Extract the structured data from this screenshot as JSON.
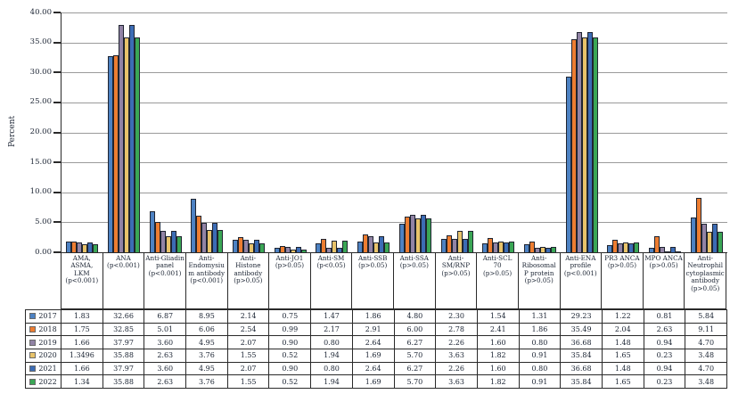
{
  "chart_data": {
    "type": "bar",
    "title": "",
    "xlabel": "",
    "ylabel": "Percent",
    "ylim": [
      0,
      40
    ],
    "ytick_step": 5,
    "grid": true,
    "legend_position": "table-below-chart",
    "categories": [
      "AMA, ASMA, LKM (p<0.001)",
      "ANA (p<0.001)",
      "Anti-Gliadin panel (p<0.001)",
      "Anti-Endomysium antibody (p<0.001)",
      "Anti-Histone antibody (p>0.05)",
      "Anti-JO1 (p>0.05)",
      "Anti-SM (p<0.05)",
      "Anti-SSB (p>0.05)",
      "Anti-SSA (p>0.05)",
      "Anti-SM/RNP (p>0.05)",
      "Anti-SCL 70 (p>0.05)",
      "Anti-Ribosomal P protein (p>0.05)",
      "Anti-ENA profile (p<0.001)",
      "PR3 ANCA (p>0.05)",
      "MPO ANCA (p>0.05)",
      "Anti-Neutrophil cytoplasmic antibody (p>0.05)"
    ],
    "series": [
      {
        "name": "2017",
        "color": "#4d82c3",
        "values": [
          "1.83",
          "32.66",
          "6.87",
          "8.95",
          "2.14",
          "0.75",
          "1.47",
          "1.86",
          "4.80",
          "2.30",
          "1.54",
          "1.31",
          "29.23",
          "1.22",
          "0.81",
          "5.84"
        ]
      },
      {
        "name": "2018",
        "color": "#ed7d31",
        "values": [
          "1.75",
          "32.85",
          "5.01",
          "6.06",
          "2.54",
          "0.99",
          "2.17",
          "2.91",
          "6.00",
          "2.78",
          "2.41",
          "1.86",
          "35.49",
          "2.04",
          "2.63",
          "9.11"
        ]
      },
      {
        "name": "2019",
        "color": "#9183a5",
        "values": [
          "1.66",
          "37.97",
          "3.60",
          "4.95",
          "2.07",
          "0.90",
          "0.80",
          "2.64",
          "6.27",
          "2.26",
          "1.60",
          "0.80",
          "36.68",
          "1.48",
          "0.94",
          "4.70"
        ]
      },
      {
        "name": "2020",
        "color": "#e8c36a",
        "values": [
          "1.3496",
          "35.88",
          "2.63",
          "3.76",
          "1.55",
          "0.52",
          "1.94",
          "1.69",
          "5.70",
          "3.63",
          "1.82",
          "0.91",
          "35.84",
          "1.65",
          "0.23",
          "3.48"
        ]
      },
      {
        "name": "2021",
        "color": "#3c6cb5",
        "values": [
          "1.66",
          "37.97",
          "3.60",
          "4.95",
          "2.07",
          "0.90",
          "0.80",
          "2.64",
          "6.27",
          "2.26",
          "1.60",
          "0.80",
          "36.68",
          "1.48",
          "0.94",
          "4.70"
        ]
      },
      {
        "name": "2022",
        "color": "#3aa655",
        "values": [
          "1.34",
          "35.88",
          "2.63",
          "3.76",
          "1.55",
          "0.52",
          "1.94",
          "1.69",
          "5.70",
          "3.63",
          "1.82",
          "0.91",
          "35.84",
          "1.65",
          "0.23",
          "3.48"
        ]
      }
    ]
  }
}
